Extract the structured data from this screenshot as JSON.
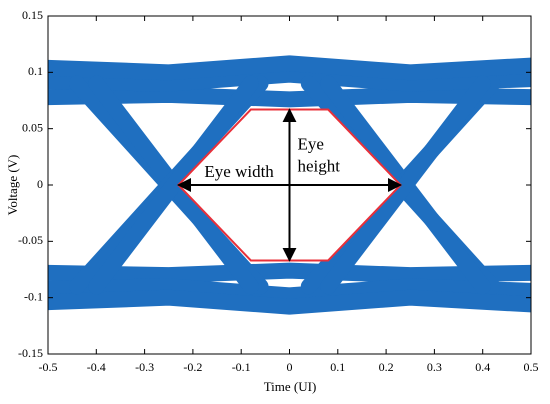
{
  "chart_data": {
    "type": "eye",
    "xlabel": "Time (UI)",
    "ylabel": "Voltage (V)",
    "xlim": [
      -0.5,
      0.5
    ],
    "ylim": [
      -0.15,
      0.15
    ],
    "xticks": [
      -0.5,
      -0.4,
      -0.3,
      -0.2,
      -0.1,
      0,
      0.1,
      0.2,
      0.3,
      0.4,
      0.5
    ],
    "yticks": [
      -0.15,
      -0.1,
      -0.05,
      0,
      0.05,
      0.1,
      0.15
    ],
    "trace_color": "#1f6fc0",
    "traces": [
      {
        "x": [
          -0.5,
          -0.25,
          0,
          0.25,
          0.5
        ],
        "y": [
          0.078,
          0.08,
          0.076,
          0.08,
          0.078
        ]
      },
      {
        "x": [
          -0.5,
          -0.25,
          0,
          0.25,
          0.5
        ],
        "y": [
          0.092,
          0.09,
          0.098,
          0.09,
          0.094
        ]
      },
      {
        "x": [
          -0.5,
          -0.25,
          0,
          0.25,
          0.5
        ],
        "y": [
          0.104,
          0.1,
          0.108,
          0.1,
          0.106
        ]
      },
      {
        "x": [
          -0.5,
          -0.25,
          0,
          0.25,
          0.5
        ],
        "y": [
          -0.078,
          -0.08,
          -0.076,
          -0.08,
          -0.078
        ]
      },
      {
        "x": [
          -0.5,
          -0.25,
          0,
          0.25,
          0.5
        ],
        "y": [
          -0.092,
          -0.09,
          -0.098,
          -0.09,
          -0.094
        ]
      },
      {
        "x": [
          -0.5,
          -0.25,
          0,
          0.25,
          0.5
        ],
        "y": [
          -0.104,
          -0.1,
          -0.108,
          -0.1,
          -0.106
        ]
      },
      {
        "x": [
          -0.44,
          -0.25,
          -0.06
        ],
        "y": [
          0.09,
          0,
          -0.09
        ]
      },
      {
        "x": [
          -0.4,
          -0.24,
          -0.08
        ],
        "y": [
          0.09,
          0,
          -0.09
        ]
      },
      {
        "x": [
          -0.44,
          -0.25,
          -0.06
        ],
        "y": [
          -0.09,
          0,
          0.09
        ]
      },
      {
        "x": [
          -0.4,
          -0.24,
          -0.08
        ],
        "y": [
          -0.09,
          0,
          0.09
        ]
      },
      {
        "x": [
          0.04,
          0.23,
          0.42
        ],
        "y": [
          0.09,
          0,
          -0.09
        ]
      },
      {
        "x": [
          0.08,
          0.24,
          0.4
        ],
        "y": [
          0.09,
          0,
          -0.09
        ]
      },
      {
        "x": [
          0.04,
          0.23,
          0.42
        ],
        "y": [
          -0.09,
          0,
          0.09
        ]
      },
      {
        "x": [
          0.08,
          0.24,
          0.4
        ],
        "y": [
          -0.09,
          0,
          0.09
        ]
      }
    ],
    "eye_opening": {
      "color": "#e8303a",
      "x": [
        -0.23,
        -0.08,
        0.08,
        0.23,
        0.08,
        -0.08
      ],
      "y": [
        0,
        0.067,
        0.067,
        0,
        -0.067,
        -0.067
      ]
    },
    "eye_width": {
      "label": "Eye width",
      "x": [
        -0.23,
        0.23
      ],
      "y": [
        0,
        0
      ]
    },
    "eye_height": {
      "label": [
        "Eye",
        "height"
      ],
      "x": [
        0,
        0
      ],
      "y": [
        0.067,
        -0.067
      ]
    }
  }
}
